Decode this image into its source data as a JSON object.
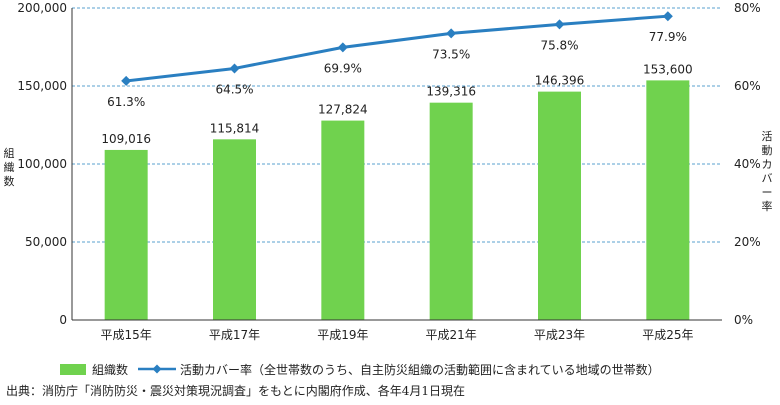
{
  "colors": {
    "bar": "#70d24e",
    "line": "#2a7fc1",
    "grid": "#5aa0cf"
  },
  "chart_data": {
    "type": "bar",
    "categories": [
      "平成15年",
      "平成17年",
      "平成19年",
      "平成21年",
      "平成23年",
      "平成25年"
    ],
    "series": [
      {
        "name": "組織数",
        "type": "bar",
        "axis": "left",
        "values": [
          109016,
          115814,
          127824,
          139316,
          146396,
          153600
        ]
      },
      {
        "name": "活動カバー率（全世帯数のうち、自主防災組織の活動範囲に含まれている地域の世帯数）",
        "type": "line",
        "axis": "right",
        "values": [
          61.3,
          64.5,
          69.9,
          73.5,
          75.8,
          77.9
        ]
      }
    ],
    "bar_labels": [
      "109,016",
      "115,814",
      "127,824",
      "139,316",
      "146,396",
      "153,600"
    ],
    "line_labels": [
      "61.3%",
      "64.5%",
      "69.9%",
      "73.5%",
      "75.8%",
      "77.9%"
    ],
    "ylabel": "組織数",
    "y2label": "活動カバー率",
    "ylim": [
      0,
      200000
    ],
    "y2lim": [
      0,
      80
    ],
    "yticks": [
      "0",
      "50,000",
      "100,000",
      "150,000",
      "200,000"
    ],
    "y2ticks": [
      "0%",
      "20%",
      "40%",
      "60%",
      "80%"
    ],
    "grid": true,
    "legend_position": "bottom"
  },
  "legend": {
    "bar_label": "組織数",
    "line_label": "活動カバー率（全世帯数のうち、自主防災組織の活動範囲に含まれている地域の世帯数）"
  },
  "source": "出典：消防庁「消防防災・震災対策現況調査」をもとに内閣府作成、各年4月1日現在"
}
